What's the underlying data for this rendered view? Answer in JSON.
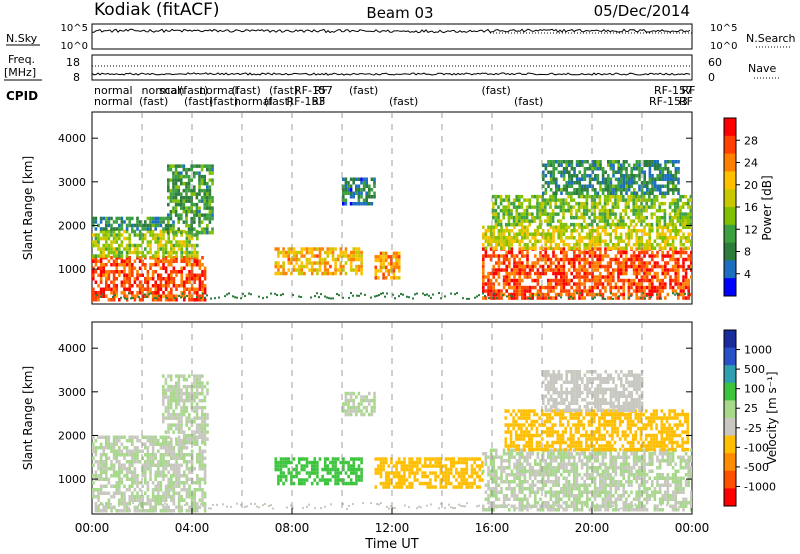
{
  "header": {
    "station": "Kodiak (fitACF)",
    "beam": "Beam 03",
    "date": "05/Dec/2014"
  },
  "chart_data": [
    {
      "type": "line",
      "panel": "noise",
      "left_label": "N.Sky",
      "right_label": "N.Search",
      "yscale": "log",
      "left_ticks": [
        "10^5",
        "10^0"
      ],
      "right_ticks": [
        "10^5",
        "10^0"
      ],
      "x": [
        0,
        2,
        4,
        6,
        8,
        10,
        12,
        14,
        16,
        18,
        20,
        22,
        24
      ],
      "values": [
        8000,
        9000,
        8500,
        7800,
        7500,
        7200,
        6800,
        7000,
        7600,
        9500,
        9000,
        8200,
        7800
      ]
    },
    {
      "type": "line",
      "panel": "freq-nave",
      "left_label_lines": [
        "Freq.",
        "[MHz]"
      ],
      "right_label": "Nave",
      "left_ticks": [
        18,
        8
      ],
      "right_ticks": [
        60,
        0
      ],
      "x": [
        0,
        2,
        4,
        6,
        8,
        10,
        12,
        14,
        16,
        18,
        20,
        22,
        24
      ],
      "values": [
        10.5,
        10.5,
        10.6,
        10.5,
        10.5,
        10.4,
        10.5,
        10.5,
        10.6,
        10.5,
        10.5,
        10.5,
        10.4
      ]
    },
    {
      "type": "table",
      "panel": "cpid",
      "label": "CPID",
      "row1": [
        "normal",
        "normal",
        "scan",
        "(fast)",
        "normal",
        "(fast)",
        "(fast)",
        "RF-157",
        "RF",
        "(fast)",
        "(fast)",
        "RF-157",
        "RF"
      ],
      "row2": [
        "normal",
        "(fast)",
        "(fast)",
        "(fast)",
        "normal",
        "(fast)",
        "RF-153",
        "RF",
        "(fast)",
        "(fast)",
        "RF-153",
        "RF"
      ],
      "row1_x": [
        0,
        1.9,
        2.6,
        3.4,
        4.2,
        5.5,
        7.0,
        8.0,
        8.8,
        10.2,
        15.5,
        22.4,
        23.5
      ],
      "row2_x": [
        0,
        1.8,
        3.6,
        4.6,
        5.6,
        6.8,
        7.7,
        8.7,
        11.8,
        16.8,
        22.2,
        23.4
      ]
    },
    {
      "type": "heatmap",
      "panel": "power",
      "ylabel": "Slant Range [km]",
      "yticks": [
        1000,
        2000,
        3000,
        4000
      ],
      "ylim": [
        200,
        4600
      ],
      "xlim": [
        0,
        24
      ],
      "colorbar": {
        "label": "Power [dB]",
        "ticks": [
          "28",
          "24",
          "20",
          "16",
          "12",
          "8",
          "4"
        ],
        "colors": [
          "#ff0000",
          "#ff4000",
          "#ff8000",
          "#ffc000",
          "#c8c800",
          "#7fc000",
          "#3da040",
          "#2c7c3c",
          "#1c6fc0",
          "#0000ff"
        ]
      },
      "regions": [
        {
          "t0": 0.0,
          "t1": 4.5,
          "r0": 300,
          "r1": 1300,
          "v": 28
        },
        {
          "t0": 0.0,
          "t1": 4.2,
          "r0": 1300,
          "r1": 1900,
          "v": 16
        },
        {
          "t0": 0.0,
          "t1": 3.0,
          "r0": 1900,
          "r1": 2200,
          "v": 8
        },
        {
          "t0": 3.0,
          "t1": 4.8,
          "r0": 1800,
          "r1": 3400,
          "v": 10
        },
        {
          "t0": 7.3,
          "t1": 10.8,
          "r0": 900,
          "r1": 1500,
          "v": 22
        },
        {
          "t0": 10.0,
          "t1": 11.3,
          "r0": 2500,
          "r1": 3100,
          "v": 6
        },
        {
          "t0": 11.3,
          "t1": 12.3,
          "r0": 800,
          "r1": 1400,
          "v": 24
        },
        {
          "t0": 15.6,
          "t1": 24.0,
          "r0": 300,
          "r1": 1500,
          "v": 28
        },
        {
          "t0": 15.6,
          "t1": 24.0,
          "r0": 1500,
          "r1": 2000,
          "v": 18
        },
        {
          "t0": 16.0,
          "t1": 24.0,
          "r0": 2000,
          "r1": 2700,
          "v": 14
        },
        {
          "t0": 18.0,
          "t1": 23.5,
          "r0": 2700,
          "r1": 3500,
          "v": 8
        }
      ]
    },
    {
      "type": "heatmap",
      "panel": "velocity",
      "ylabel": "Slant Range [km]",
      "yticks": [
        1000,
        2000,
        3000,
        4000
      ],
      "ylim": [
        200,
        4600
      ],
      "xlim": [
        0,
        24
      ],
      "xticks": [
        "00:00",
        "04:00",
        "08:00",
        "12:00",
        "16:00",
        "20:00",
        "00:00"
      ],
      "xlabel": "Time UT",
      "colorbar": {
        "label": "Velocity [m s⁻¹]",
        "ticks": [
          "1000",
          "500",
          "100",
          "25",
          "-25",
          "-100",
          "-500",
          "-1000"
        ],
        "colors": [
          "#1a2c9c",
          "#2a50c8",
          "#2f9fb0",
          "#3cc43c",
          "#a8d88c",
          "#c8c8c0",
          "#ffbe00",
          "#ff8c00",
          "#ff5000",
          "#ff0000"
        ]
      },
      "regions": [
        {
          "t0": 0.0,
          "t1": 4.5,
          "r0": 300,
          "r1": 2000,
          "v": 0
        },
        {
          "t0": 2.8,
          "t1": 4.6,
          "r0": 1800,
          "r1": 3400,
          "v": 0
        },
        {
          "t0": 7.3,
          "t1": 10.8,
          "r0": 900,
          "r1": 1500,
          "v": 300
        },
        {
          "t0": 10.0,
          "t1": 11.3,
          "r0": 2500,
          "r1": 3000,
          "v": 0
        },
        {
          "t0": 11.3,
          "t1": 15.6,
          "r0": 800,
          "r1": 1500,
          "v": -300
        },
        {
          "t0": 15.6,
          "t1": 24.0,
          "r0": 300,
          "r1": 1700,
          "v": 0
        },
        {
          "t0": 16.5,
          "t1": 23.8,
          "r0": 1700,
          "r1": 2600,
          "v": -300
        },
        {
          "t0": 18.0,
          "t1": 22.0,
          "r0": 2600,
          "r1": 3500,
          "v": -100
        }
      ]
    }
  ]
}
